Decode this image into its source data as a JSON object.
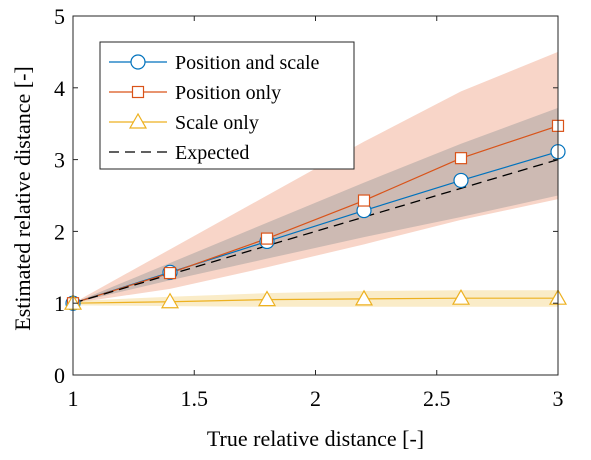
{
  "chart_data": {
    "type": "line",
    "xlabel": "True relative distance [-]",
    "ylabel": "Estimated relative distance [-]",
    "xlim": [
      1,
      3
    ],
    "ylim": [
      0,
      5
    ],
    "xticks": [
      1,
      1.5,
      2,
      2.5,
      3
    ],
    "yticks": [
      0,
      1,
      2,
      3,
      4,
      5
    ],
    "xtick_labels": [
      "1",
      "1.5",
      "2",
      "2.5",
      "3"
    ],
    "ytick_labels": [
      "0",
      "1",
      "2",
      "3",
      "4",
      "5"
    ],
    "grid": false,
    "legend_position": "top-left",
    "x": [
      1,
      1.4,
      1.8,
      2.2,
      2.6,
      3
    ],
    "series": [
      {
        "name": "Position and scale",
        "marker": "circle",
        "color": "#0072BD",
        "band_color": "#9a9a9a",
        "values": [
          1.0,
          1.43,
          1.86,
          2.29,
          2.71,
          3.11
        ],
        "band_lower": [
          1.0,
          1.32,
          1.62,
          1.92,
          2.2,
          2.5
        ],
        "band_upper": [
          1.0,
          1.56,
          2.12,
          2.68,
          3.22,
          3.72
        ]
      },
      {
        "name": "Position only",
        "marker": "square",
        "color": "#D95319",
        "band_color": "#f4b9a3",
        "values": [
          1.0,
          1.42,
          1.9,
          2.43,
          3.02,
          3.47
        ],
        "band_lower": [
          1.0,
          1.2,
          1.5,
          1.82,
          2.16,
          2.45
        ],
        "band_upper": [
          1.0,
          1.75,
          2.5,
          3.25,
          3.95,
          4.5
        ]
      },
      {
        "name": "Scale only",
        "marker": "triangle",
        "color": "#EDB120",
        "band_color": "#f7dfa3",
        "values": [
          1.0,
          1.02,
          1.05,
          1.06,
          1.07,
          1.07
        ],
        "band_lower": [
          0.97,
          0.96,
          0.95,
          0.95,
          0.95,
          0.95
        ],
        "band_upper": [
          1.03,
          1.09,
          1.14,
          1.17,
          1.18,
          1.18
        ]
      },
      {
        "name": "Expected",
        "marker": "none",
        "line_style": "dashed",
        "color": "#000000",
        "values": [
          1.0,
          1.4,
          1.8,
          2.2,
          2.6,
          3.0
        ]
      }
    ]
  }
}
